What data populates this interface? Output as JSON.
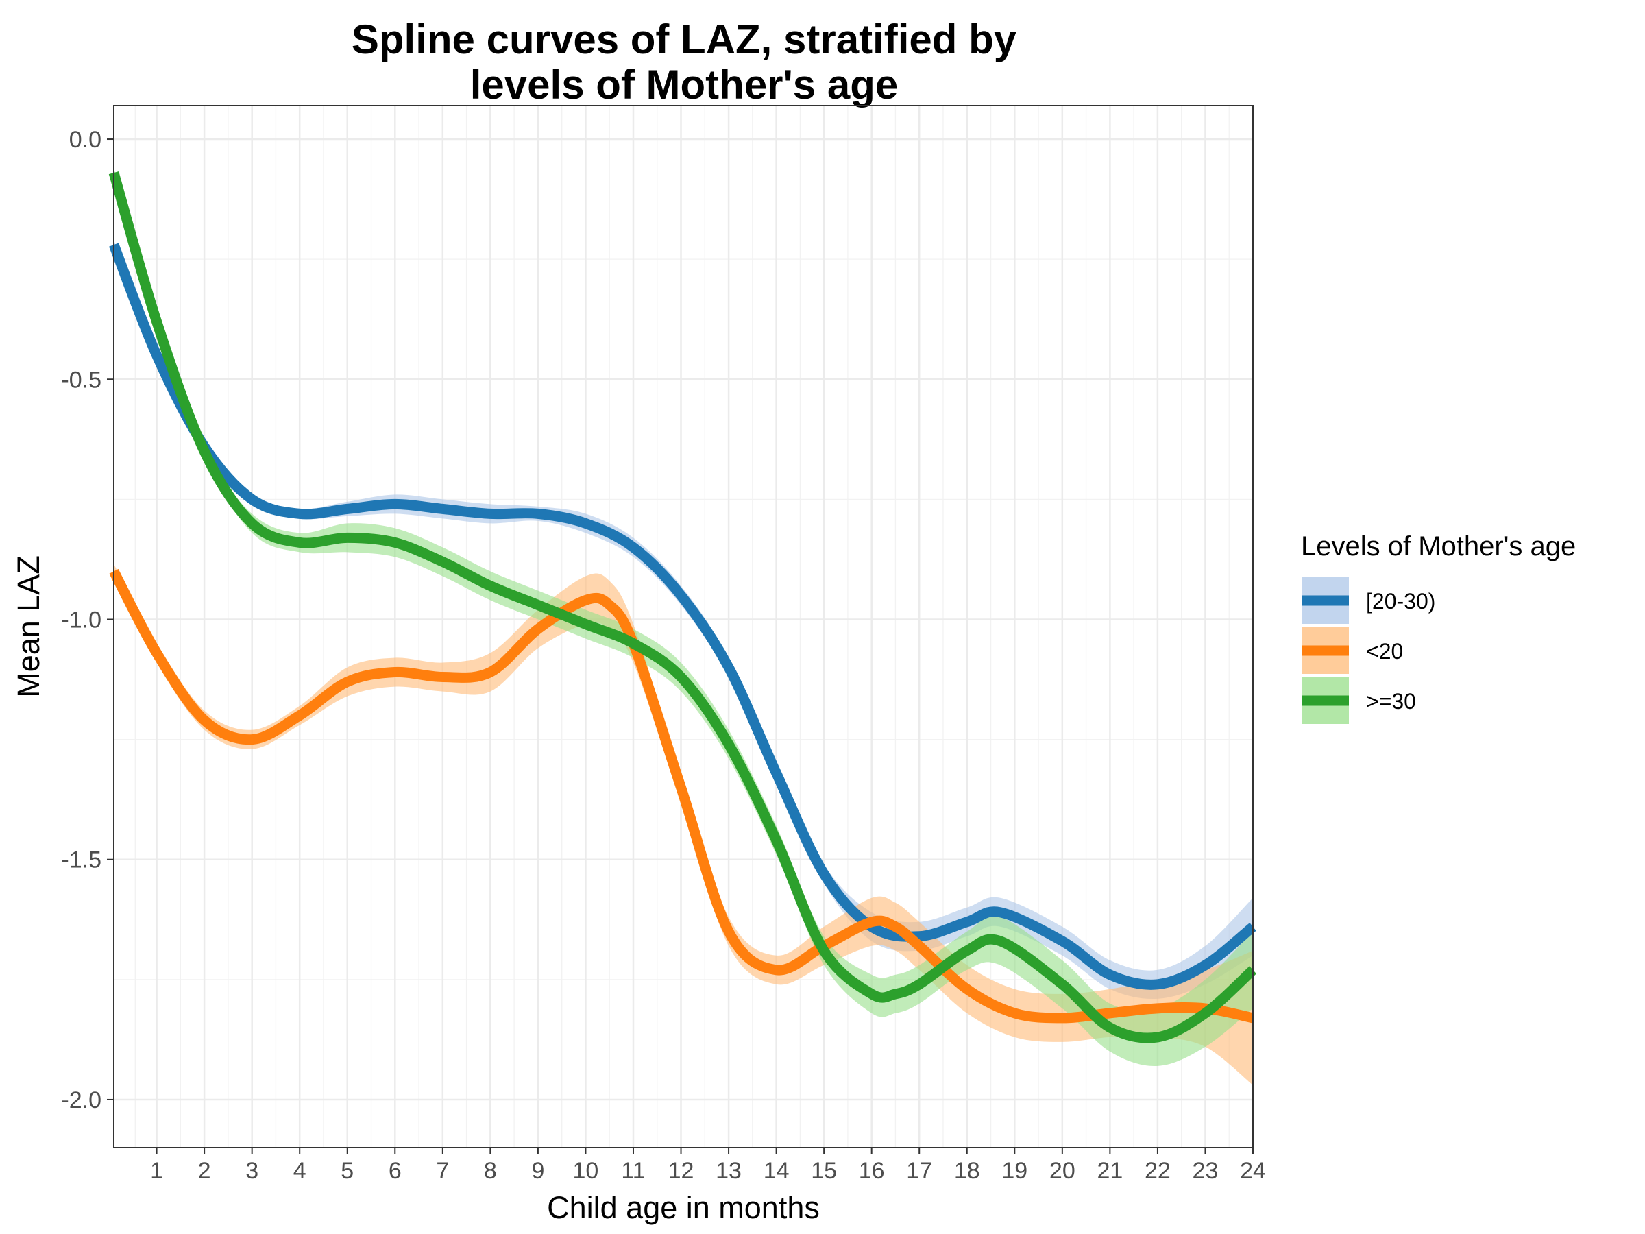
{
  "chart_data": {
    "type": "line",
    "title_lines": [
      "Spline curves of LAZ, stratified by",
      "levels of Mother's age"
    ],
    "xlabel": "Child age in months",
    "ylabel": "Mean LAZ",
    "xlim": [
      0.1,
      24
    ],
    "ylim": [
      -2.1,
      0.07
    ],
    "x_ticks": [
      1,
      2,
      3,
      4,
      5,
      6,
      7,
      8,
      9,
      10,
      11,
      12,
      13,
      14,
      15,
      16,
      17,
      18,
      19,
      20,
      21,
      22,
      23,
      24
    ],
    "x_tick_labels": [
      "1",
      "2",
      "3",
      "4",
      "5",
      "6",
      "7",
      "8",
      "9",
      "10",
      "11",
      "12",
      "13",
      "14",
      "15",
      "16",
      "17",
      "18",
      "19",
      "20",
      "21",
      "22",
      "23",
      "24"
    ],
    "y_ticks": [
      0.0,
      -0.5,
      -1.0,
      -1.5,
      -2.0
    ],
    "y_tick_labels": [
      "0.0",
      "-0.5",
      "-1.0",
      "-1.5",
      "-2.0"
    ],
    "grid": true,
    "legend": {
      "title": "Levels of Mother's age",
      "placement": "right"
    },
    "series": [
      {
        "name": "[20-30)",
        "color": "#1f77b4",
        "ribbon_color": "#aec7e8",
        "x": [
          0.1,
          1,
          2,
          3,
          4,
          5,
          6,
          7,
          8,
          9,
          10,
          11,
          12,
          13,
          14,
          15,
          16,
          17,
          18,
          18.7,
          20,
          21,
          22,
          23,
          24
        ],
        "y": [
          -0.22,
          -0.45,
          -0.64,
          -0.75,
          -0.78,
          -0.77,
          -0.76,
          -0.77,
          -0.78,
          -0.78,
          -0.8,
          -0.85,
          -0.95,
          -1.1,
          -1.32,
          -1.53,
          -1.64,
          -1.66,
          -1.63,
          -1.61,
          -1.67,
          -1.74,
          -1.76,
          -1.72,
          -1.64
        ],
        "ci": [
          0.01,
          0.01,
          0.01,
          0.01,
          0.01,
          0.015,
          0.02,
          0.02,
          0.02,
          0.015,
          0.02,
          0.02,
          0.02,
          0.02,
          0.02,
          0.02,
          0.03,
          0.03,
          0.03,
          0.03,
          0.03,
          0.03,
          0.03,
          0.04,
          0.06
        ]
      },
      {
        "name": "<20",
        "color": "#ff7f0e",
        "ribbon_color": "#ffbb78",
        "x": [
          0.1,
          1,
          2,
          3,
          4,
          5,
          6,
          7,
          8,
          9,
          10,
          10.5,
          11,
          12,
          13,
          14,
          15,
          16,
          16.5,
          17,
          18,
          19,
          20,
          21,
          22,
          23,
          24
        ],
        "y": [
          -0.9,
          -1.07,
          -1.21,
          -1.25,
          -1.2,
          -1.13,
          -1.11,
          -1.12,
          -1.11,
          -1.02,
          -0.96,
          -0.97,
          -1.05,
          -1.35,
          -1.65,
          -1.73,
          -1.68,
          -1.63,
          -1.64,
          -1.68,
          -1.77,
          -1.82,
          -1.83,
          -1.82,
          -1.81,
          -1.81,
          -1.83
        ],
        "ci": [
          0.015,
          0.02,
          0.02,
          0.02,
          0.02,
          0.03,
          0.03,
          0.03,
          0.04,
          0.04,
          0.05,
          0.05,
          0.04,
          0.03,
          0.03,
          0.03,
          0.04,
          0.05,
          0.05,
          0.05,
          0.05,
          0.05,
          0.05,
          0.05,
          0.06,
          0.08,
          0.14
        ]
      },
      {
        "name": ">=30",
        "color": "#2ca02c",
        "ribbon_color": "#98df8a",
        "x": [
          0.1,
          1,
          2,
          3,
          4,
          5,
          6,
          7,
          8,
          9,
          10,
          11,
          12,
          13,
          14,
          15,
          16,
          16.5,
          17,
          18,
          18.7,
          20,
          21,
          22,
          23,
          24
        ],
        "y": [
          -0.07,
          -0.38,
          -0.65,
          -0.8,
          -0.84,
          -0.83,
          -0.84,
          -0.88,
          -0.93,
          -0.97,
          -1.01,
          -1.05,
          -1.12,
          -1.26,
          -1.46,
          -1.69,
          -1.78,
          -1.78,
          -1.76,
          -1.69,
          -1.67,
          -1.76,
          -1.85,
          -1.87,
          -1.82,
          -1.73
        ],
        "ci": [
          0.01,
          0.01,
          0.01,
          0.02,
          0.02,
          0.03,
          0.03,
          0.03,
          0.03,
          0.03,
          0.03,
          0.03,
          0.03,
          0.03,
          0.03,
          0.03,
          0.04,
          0.04,
          0.04,
          0.04,
          0.05,
          0.05,
          0.05,
          0.06,
          0.07,
          0.08
        ]
      }
    ]
  }
}
